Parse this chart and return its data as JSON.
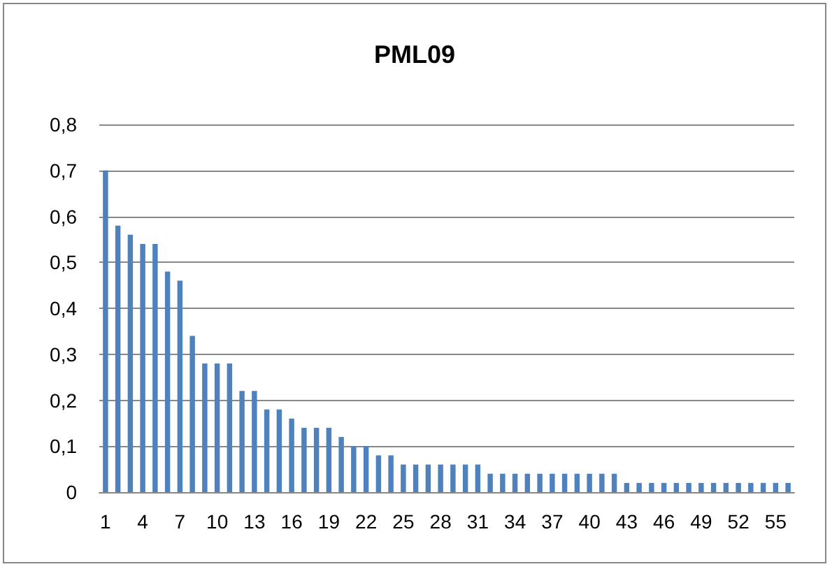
{
  "chart_data": {
    "type": "bar",
    "title": "PML09",
    "categories": [
      "1",
      null,
      null,
      "4",
      null,
      null,
      "7",
      null,
      null,
      "10",
      null,
      null,
      "13",
      null,
      null,
      "16",
      null,
      null,
      "19",
      null,
      null,
      "22",
      null,
      null,
      "25",
      null,
      null,
      "28",
      null,
      null,
      "31",
      null,
      null,
      "34",
      null,
      null,
      "37",
      null,
      null,
      "40",
      null,
      null,
      "43",
      null,
      null,
      "46",
      null,
      null,
      "49",
      null,
      null,
      "52",
      null,
      null,
      "55",
      null
    ],
    "values": [
      0.7,
      0.58,
      0.56,
      0.54,
      0.54,
      0.48,
      0.46,
      0.34,
      0.28,
      0.28,
      0.28,
      0.22,
      0.22,
      0.18,
      0.18,
      0.16,
      0.14,
      0.14,
      0.14,
      0.12,
      0.1,
      0.1,
      0.08,
      0.08,
      0.06,
      0.06,
      0.06,
      0.06,
      0.06,
      0.06,
      0.06,
      0.04,
      0.04,
      0.04,
      0.04,
      0.04,
      0.04,
      0.04,
      0.04,
      0.04,
      0.04,
      0.04,
      0.02,
      0.02,
      0.02,
      0.02,
      0.02,
      0.02,
      0.02,
      0.02,
      0.02,
      0.02,
      0.02,
      0.02,
      0.02,
      0.02
    ],
    "color": "#4f81bd",
    "ylim": [
      0,
      0.8
    ],
    "yticks": [
      0,
      {
        "value": 0.1,
        "label": "0,1"
      },
      {
        "value": 0.2,
        "label": "0,2"
      },
      {
        "value": 0.3,
        "label": "0,3"
      },
      {
        "value": 0.4,
        "label": "0,4"
      },
      {
        "value": 0.5,
        "label": "0,5"
      },
      {
        "value": 0.6,
        "label": "0,6"
      },
      {
        "value": 0.7,
        "label": "0,7"
      },
      {
        "value": 0.8,
        "label": "0,8"
      }
    ],
    "grid": true
  }
}
